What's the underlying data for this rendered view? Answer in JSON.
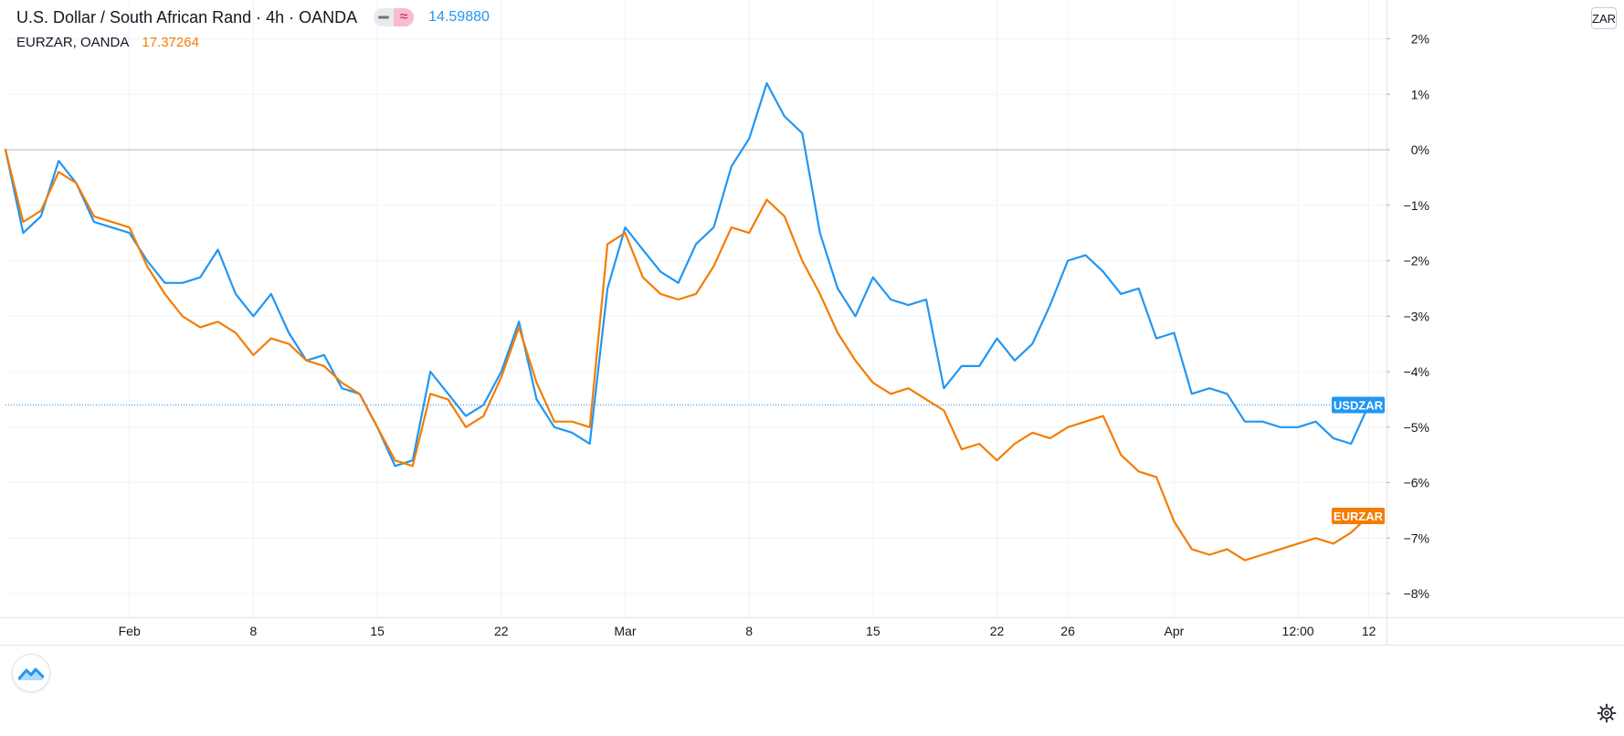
{
  "legend": {
    "main_symbol": "U.S. Dollar / South African Rand · 4h · OANDA",
    "main_price": "14.59880",
    "compare_symbol": "EURZAR, OANDA",
    "compare_price": "17.37264",
    "hide_icon": "minus-icon",
    "compare_icon": "approx-icon"
  },
  "currency_label": "ZAR",
  "colors": {
    "usdzar": "#2196f3",
    "eurzar": "#f57c00",
    "grid": "#f0f3fa",
    "zero_line": "#9598a1",
    "text": "#131722"
  },
  "chart_data": {
    "type": "line",
    "title": "U.S. Dollar / South African Rand · 4h · OANDA",
    "ylabel": "",
    "xlabel": "",
    "ylim": [
      -8.3,
      2.2
    ],
    "yticks": [
      2,
      1,
      0,
      -1,
      -2,
      -3,
      -4,
      -5,
      -6,
      -7,
      -8
    ],
    "ytick_labels": [
      "2%",
      "1%",
      "0%",
      "−1%",
      "−2%",
      "−3%",
      "−4%",
      "−5%",
      "−6%",
      "−7%",
      "−8%"
    ],
    "x_range": [
      "2021-01-25",
      "2021-04-13"
    ],
    "x_unit": "date",
    "xticks": [
      {
        "x": "2021-02-01",
        "label": "Feb"
      },
      {
        "x": "2021-02-08",
        "label": "8"
      },
      {
        "x": "2021-02-15",
        "label": "15"
      },
      {
        "x": "2021-02-22",
        "label": "22"
      },
      {
        "x": "2021-03-01",
        "label": "Mar"
      },
      {
        "x": "2021-03-08",
        "label": "8"
      },
      {
        "x": "2021-03-15",
        "label": "15"
      },
      {
        "x": "2021-03-22",
        "label": "22"
      },
      {
        "x": "2021-03-26",
        "label": "26"
      },
      {
        "x": "2021-04-01",
        "label": "Apr"
      },
      {
        "x": "2021-04-08",
        "label": "12:00"
      },
      {
        "x": "2021-04-12",
        "label": "12"
      }
    ],
    "zero_line": 0,
    "grid": true,
    "legend_placement": "top-left",
    "series": [
      {
        "name": "USDZAR",
        "color": "#2196f3",
        "last_label": "USDZAR",
        "points": [
          [
            "2021-01-25",
            0.0
          ],
          [
            "2021-01-26",
            -1.5
          ],
          [
            "2021-01-27",
            -1.2
          ],
          [
            "2021-01-28",
            -0.2
          ],
          [
            "2021-01-29",
            -0.6
          ],
          [
            "2021-01-30",
            -1.3
          ],
          [
            "2021-02-01",
            -1.5
          ],
          [
            "2021-02-02",
            -2.0
          ],
          [
            "2021-02-03",
            -2.4
          ],
          [
            "2021-02-04",
            -2.4
          ],
          [
            "2021-02-05",
            -2.3
          ],
          [
            "2021-02-06",
            -1.8
          ],
          [
            "2021-02-07",
            -2.6
          ],
          [
            "2021-02-08",
            -3.0
          ],
          [
            "2021-02-09",
            -2.6
          ],
          [
            "2021-02-10",
            -3.3
          ],
          [
            "2021-02-11",
            -3.8
          ],
          [
            "2021-02-12",
            -3.7
          ],
          [
            "2021-02-13",
            -4.3
          ],
          [
            "2021-02-14",
            -4.4
          ],
          [
            "2021-02-15",
            -5.0
          ],
          [
            "2021-02-16",
            -5.7
          ],
          [
            "2021-02-17",
            -5.6
          ],
          [
            "2021-02-18",
            -4.0
          ],
          [
            "2021-02-19",
            -4.4
          ],
          [
            "2021-02-20",
            -4.8
          ],
          [
            "2021-02-21",
            -4.6
          ],
          [
            "2021-02-22",
            -4.0
          ],
          [
            "2021-02-23",
            -3.1
          ],
          [
            "2021-02-24",
            -4.5
          ],
          [
            "2021-02-25",
            -5.0
          ],
          [
            "2021-02-26",
            -5.1
          ],
          [
            "2021-02-27",
            -5.3
          ],
          [
            "2021-02-28",
            -2.5
          ],
          [
            "2021-03-01",
            -1.4
          ],
          [
            "2021-03-02",
            -1.8
          ],
          [
            "2021-03-03",
            -2.2
          ],
          [
            "2021-03-04",
            -2.4
          ],
          [
            "2021-03-05",
            -1.7
          ],
          [
            "2021-03-06",
            -1.4
          ],
          [
            "2021-03-07",
            -0.3
          ],
          [
            "2021-03-08",
            0.2
          ],
          [
            "2021-03-09",
            1.2
          ],
          [
            "2021-03-10",
            0.6
          ],
          [
            "2021-03-11",
            0.3
          ],
          [
            "2021-03-12",
            -1.5
          ],
          [
            "2021-03-13",
            -2.5
          ],
          [
            "2021-03-14",
            -3.0
          ],
          [
            "2021-03-15",
            -2.3
          ],
          [
            "2021-03-16",
            -2.7
          ],
          [
            "2021-03-17",
            -2.8
          ],
          [
            "2021-03-18",
            -2.7
          ],
          [
            "2021-03-19",
            -4.3
          ],
          [
            "2021-03-20",
            -3.9
          ],
          [
            "2021-03-21",
            -3.9
          ],
          [
            "2021-03-22",
            -3.4
          ],
          [
            "2021-03-23",
            -3.8
          ],
          [
            "2021-03-24",
            -3.5
          ],
          [
            "2021-03-25",
            -2.8
          ],
          [
            "2021-03-26",
            -2.0
          ],
          [
            "2021-03-27",
            -1.9
          ],
          [
            "2021-03-28",
            -2.2
          ],
          [
            "2021-03-29",
            -2.6
          ],
          [
            "2021-03-30",
            -2.5
          ],
          [
            "2021-03-31",
            -3.4
          ],
          [
            "2021-04-01",
            -3.3
          ],
          [
            "2021-04-02",
            -4.4
          ],
          [
            "2021-04-03",
            -4.3
          ],
          [
            "2021-04-04",
            -4.4
          ],
          [
            "2021-04-05",
            -4.9
          ],
          [
            "2021-04-06",
            -4.9
          ],
          [
            "2021-04-07",
            -5.0
          ],
          [
            "2021-04-08",
            -5.0
          ],
          [
            "2021-04-09",
            -4.9
          ],
          [
            "2021-04-10",
            -5.2
          ],
          [
            "2021-04-11",
            -5.3
          ],
          [
            "2021-04-12",
            -4.6
          ]
        ]
      },
      {
        "name": "EURZAR",
        "color": "#f57c00",
        "last_label": "EURZAR",
        "points": [
          [
            "2021-01-25",
            0.0
          ],
          [
            "2021-01-26",
            -1.3
          ],
          [
            "2021-01-27",
            -1.1
          ],
          [
            "2021-01-28",
            -0.4
          ],
          [
            "2021-01-29",
            -0.6
          ],
          [
            "2021-01-30",
            -1.2
          ],
          [
            "2021-02-01",
            -1.4
          ],
          [
            "2021-02-02",
            -2.1
          ],
          [
            "2021-02-03",
            -2.6
          ],
          [
            "2021-02-04",
            -3.0
          ],
          [
            "2021-02-05",
            -3.2
          ],
          [
            "2021-02-06",
            -3.1
          ],
          [
            "2021-02-07",
            -3.3
          ],
          [
            "2021-02-08",
            -3.7
          ],
          [
            "2021-02-09",
            -3.4
          ],
          [
            "2021-02-10",
            -3.5
          ],
          [
            "2021-02-11",
            -3.8
          ],
          [
            "2021-02-12",
            -3.9
          ],
          [
            "2021-02-13",
            -4.2
          ],
          [
            "2021-02-14",
            -4.4
          ],
          [
            "2021-02-15",
            -5.0
          ],
          [
            "2021-02-16",
            -5.6
          ],
          [
            "2021-02-17",
            -5.7
          ],
          [
            "2021-02-18",
            -4.4
          ],
          [
            "2021-02-19",
            -4.5
          ],
          [
            "2021-02-20",
            -5.0
          ],
          [
            "2021-02-21",
            -4.8
          ],
          [
            "2021-02-22",
            -4.1
          ],
          [
            "2021-02-23",
            -3.2
          ],
          [
            "2021-02-24",
            -4.2
          ],
          [
            "2021-02-25",
            -4.9
          ],
          [
            "2021-02-26",
            -4.9
          ],
          [
            "2021-02-27",
            -5.0
          ],
          [
            "2021-02-28",
            -1.7
          ],
          [
            "2021-03-01",
            -1.5
          ],
          [
            "2021-03-02",
            -2.3
          ],
          [
            "2021-03-03",
            -2.6
          ],
          [
            "2021-03-04",
            -2.7
          ],
          [
            "2021-03-05",
            -2.6
          ],
          [
            "2021-03-06",
            -2.1
          ],
          [
            "2021-03-07",
            -1.4
          ],
          [
            "2021-03-08",
            -1.5
          ],
          [
            "2021-03-09",
            -0.9
          ],
          [
            "2021-03-10",
            -1.2
          ],
          [
            "2021-03-11",
            -2.0
          ],
          [
            "2021-03-12",
            -2.6
          ],
          [
            "2021-03-13",
            -3.3
          ],
          [
            "2021-03-14",
            -3.8
          ],
          [
            "2021-03-15",
            -4.2
          ],
          [
            "2021-03-16",
            -4.4
          ],
          [
            "2021-03-17",
            -4.3
          ],
          [
            "2021-03-18",
            -4.5
          ],
          [
            "2021-03-19",
            -4.7
          ],
          [
            "2021-03-20",
            -5.4
          ],
          [
            "2021-03-21",
            -5.3
          ],
          [
            "2021-03-22",
            -5.6
          ],
          [
            "2021-03-23",
            -5.3
          ],
          [
            "2021-03-24",
            -5.1
          ],
          [
            "2021-03-25",
            -5.2
          ],
          [
            "2021-03-26",
            -5.0
          ],
          [
            "2021-03-27",
            -4.9
          ],
          [
            "2021-03-28",
            -4.8
          ],
          [
            "2021-03-29",
            -5.5
          ],
          [
            "2021-03-30",
            -5.8
          ],
          [
            "2021-03-31",
            -5.9
          ],
          [
            "2021-04-01",
            -6.7
          ],
          [
            "2021-04-02",
            -7.2
          ],
          [
            "2021-04-03",
            -7.3
          ],
          [
            "2021-04-04",
            -7.2
          ],
          [
            "2021-04-05",
            -7.4
          ],
          [
            "2021-04-06",
            -7.3
          ],
          [
            "2021-04-07",
            -7.2
          ],
          [
            "2021-04-08",
            -7.1
          ],
          [
            "2021-04-09",
            -7.0
          ],
          [
            "2021-04-10",
            -7.1
          ],
          [
            "2021-04-11",
            -6.9
          ],
          [
            "2021-04-12",
            -6.6
          ]
        ]
      }
    ]
  }
}
